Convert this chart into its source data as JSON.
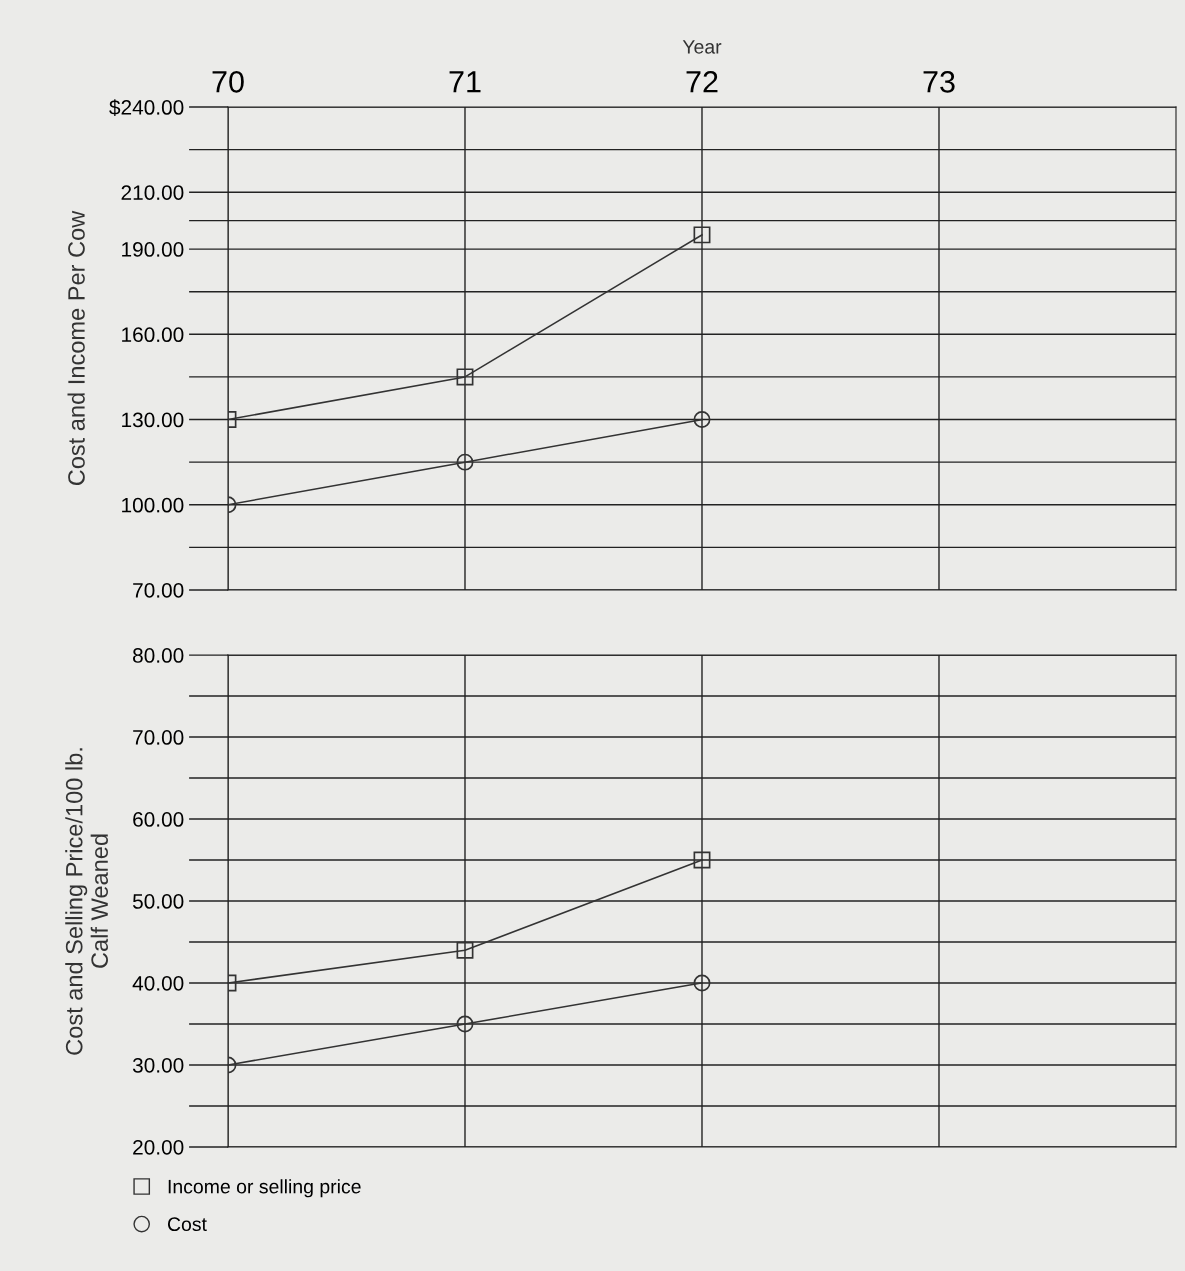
{
  "chart_data": [
    {
      "type": "line",
      "xlabel": "Year",
      "ylabel": "Cost and Income Per Cow",
      "categories": [
        "70",
        "71",
        "72",
        "73"
      ],
      "series": [
        {
          "color": "#333333",
          "marker": "square",
          "values": [
            130,
            145,
            195,
            null
          ]
        },
        {
          "color": "#333333",
          "marker": "circle",
          "values": [
            100,
            115,
            130,
            null
          ]
        }
      ],
      "ylim": [
        70,
        240
      ],
      "yticks": [
        {
          "value": 70,
          "label": "70.00"
        },
        {
          "value": 85,
          "label": null
        },
        {
          "value": 100,
          "label": "100.00"
        },
        {
          "value": 115,
          "label": null
        },
        {
          "value": 130,
          "label": "130.00"
        },
        {
          "value": 145,
          "label": null
        },
        {
          "value": 160,
          "label": "160.00"
        },
        {
          "value": 175,
          "label": null
        },
        {
          "value": 190,
          "label": "190.00"
        },
        {
          "value": 200,
          "label": null
        },
        {
          "value": 210,
          "label": "210.00"
        },
        {
          "value": 225,
          "label": null
        },
        {
          "value": 240,
          "label": "$240.00"
        }
      ],
      "grid": true,
      "legend": false
    },
    {
      "type": "line",
      "ylabel": "Cost and Selling Price/100 lb.\nCalf Weaned",
      "categories": [
        "70",
        "71",
        "72",
        "73"
      ],
      "series": [
        {
          "name": "Income or selling price",
          "color": "#333333",
          "marker": "square",
          "values": [
            40,
            44,
            55,
            null
          ]
        },
        {
          "name": "Cost",
          "color": "#333333",
          "marker": "circle",
          "values": [
            30,
            35,
            40,
            null
          ]
        }
      ],
      "ylim": [
        20,
        80
      ],
      "yticks": [
        {
          "value": 20,
          "label": "20.00"
        },
        {
          "value": 25,
          "label": null
        },
        {
          "value": 30,
          "label": "30.00"
        },
        {
          "value": 35,
          "label": null
        },
        {
          "value": 40,
          "label": "40.00"
        },
        {
          "value": 45,
          "label": null
        },
        {
          "value": 50,
          "label": "50.00"
        },
        {
          "value": 55,
          "label": null
        },
        {
          "value": 60,
          "label": "60.00"
        },
        {
          "value": 65,
          "label": null
        },
        {
          "value": 70,
          "label": "70.00"
        },
        {
          "value": 75,
          "label": null
        },
        {
          "value": 80,
          "label": "80.00"
        }
      ],
      "grid": true,
      "legend": "bottom left",
      "tick_labels": "y"
    }
  ]
}
